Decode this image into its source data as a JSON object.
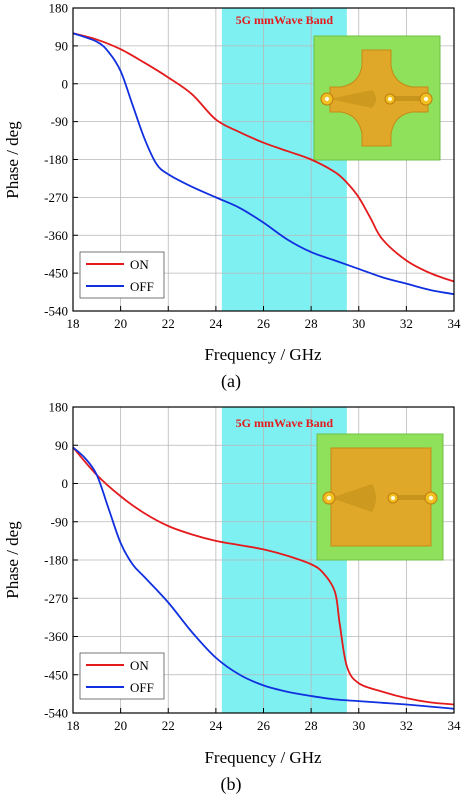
{
  "chart_data": [
    {
      "type": "line",
      "caption": "(a)",
      "xlabel": "Frequency / GHz",
      "ylabel": "Phase / deg",
      "xlim": [
        18,
        34
      ],
      "ylim": [
        -540,
        180
      ],
      "xticks": [
        18,
        20,
        22,
        24,
        26,
        28,
        30,
        32,
        34
      ],
      "yticks": [
        180,
        90,
        0,
        -90,
        -180,
        -270,
        -360,
        -450,
        -540
      ],
      "grid": true,
      "legend_position": "bottom-left",
      "band": {
        "label": "5G mmWave Band",
        "x_start": 24.25,
        "x_end": 29.5,
        "color": "#7ff0f2"
      },
      "inset": "patch-antenna-cross-shaped",
      "series": [
        {
          "name": "ON",
          "color": "#e41a1c",
          "x": [
            18,
            19,
            20,
            21,
            22,
            23,
            24,
            25,
            26,
            27,
            28,
            29,
            29.5,
            30,
            30.5,
            31,
            32,
            33,
            34
          ],
          "y": [
            120,
            105,
            82,
            50,
            15,
            -25,
            -85,
            -115,
            -140,
            -160,
            -180,
            -210,
            -235,
            -270,
            -320,
            -370,
            -420,
            -450,
            -470
          ]
        },
        {
          "name": "OFF",
          "color": "#1030e0",
          "x": [
            18,
            19,
            19.5,
            20,
            20.5,
            21,
            21.5,
            22,
            23,
            24,
            25,
            26,
            27,
            28,
            29,
            30,
            31,
            32,
            33,
            34
          ],
          "y": [
            120,
            100,
            75,
            30,
            -50,
            -130,
            -190,
            -215,
            -245,
            -270,
            -295,
            -330,
            -370,
            -400,
            -420,
            -440,
            -460,
            -475,
            -490,
            -500
          ]
        }
      ]
    },
    {
      "type": "line",
      "caption": "(b)",
      "xlabel": "Frequency / GHz",
      "ylabel": "Phase / deg",
      "xlim": [
        18,
        34
      ],
      "ylim": [
        -540,
        180
      ],
      "xticks": [
        18,
        20,
        22,
        24,
        26,
        28,
        30,
        32,
        34
      ],
      "yticks": [
        180,
        90,
        0,
        -90,
        -180,
        -270,
        -360,
        -450,
        -540
      ],
      "grid": true,
      "legend_position": "bottom-left",
      "band": {
        "label": "5G mmWave Band",
        "x_start": 24.25,
        "x_end": 29.5,
        "color": "#7ff0f2"
      },
      "inset": "patch-antenna-square",
      "series": [
        {
          "name": "ON",
          "color": "#e41a1c",
          "x": [
            18,
            19,
            20,
            21,
            22,
            23,
            24,
            25,
            26,
            27,
            28,
            28.5,
            29,
            29.2,
            29.5,
            30,
            31,
            32,
            33,
            34
          ],
          "y": [
            85,
            20,
            -30,
            -70,
            -100,
            -120,
            -135,
            -145,
            -155,
            -170,
            -190,
            -210,
            -255,
            -330,
            -430,
            -470,
            -490,
            -505,
            -515,
            -520
          ]
        },
        {
          "name": "OFF",
          "color": "#1030e0",
          "x": [
            18,
            18.5,
            19,
            19.5,
            20,
            20.5,
            21,
            22,
            23,
            24,
            25,
            26,
            27,
            28,
            29,
            30,
            31,
            32,
            33,
            34
          ],
          "y": [
            85,
            60,
            20,
            -60,
            -140,
            -190,
            -220,
            -280,
            -350,
            -410,
            -450,
            -475,
            -490,
            -500,
            -508,
            -512,
            -516,
            -520,
            -525,
            -530
          ]
        }
      ]
    }
  ]
}
